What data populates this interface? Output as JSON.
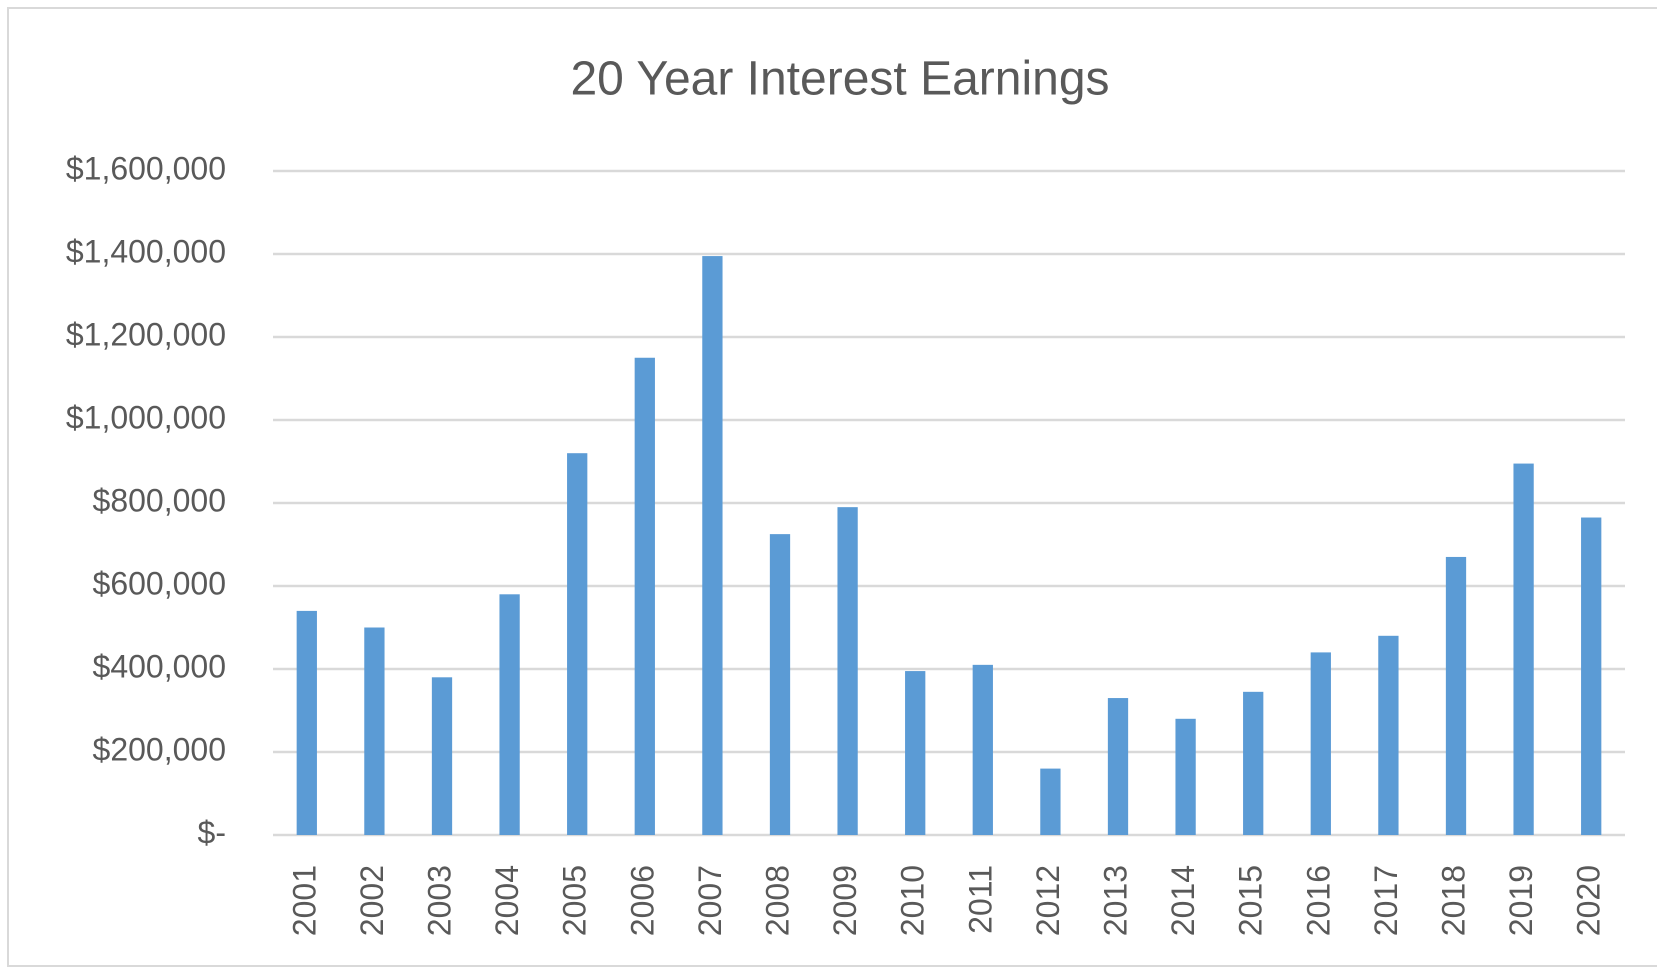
{
  "chart_data": {
    "type": "bar",
    "title": "20 Year Interest Earnings",
    "categories": [
      "2001",
      "2002",
      "2003",
      "2004",
      "2005",
      "2006",
      "2007",
      "2008",
      "2009",
      "2010",
      "2011",
      "2012",
      "2013",
      "2014",
      "2015",
      "2016",
      "2017",
      "2018",
      "2019",
      "2020"
    ],
    "values": [
      540000,
      500000,
      380000,
      580000,
      920000,
      1150000,
      1395000,
      725000,
      790000,
      395000,
      410000,
      160000,
      330000,
      280000,
      345000,
      440000,
      480000,
      670000,
      895000,
      765000
    ],
    "color": "#5b9bd5",
    "ylim": [
      0,
      1600000
    ],
    "yticks": [
      {
        "value": 0,
        "label": "$-"
      },
      {
        "value": 200000,
        "label": "$200,000"
      },
      {
        "value": 400000,
        "label": "$400,000"
      },
      {
        "value": 600000,
        "label": "$600,000"
      },
      {
        "value": 800000,
        "label": "$800,000"
      },
      {
        "value": 1000000,
        "label": "$1,000,000"
      },
      {
        "value": 1200000,
        "label": "$1,200,000"
      },
      {
        "value": 1400000,
        "label": "$1,400,000"
      },
      {
        "value": 1600000,
        "label": "$1,600,000"
      }
    ],
    "grid": true
  }
}
